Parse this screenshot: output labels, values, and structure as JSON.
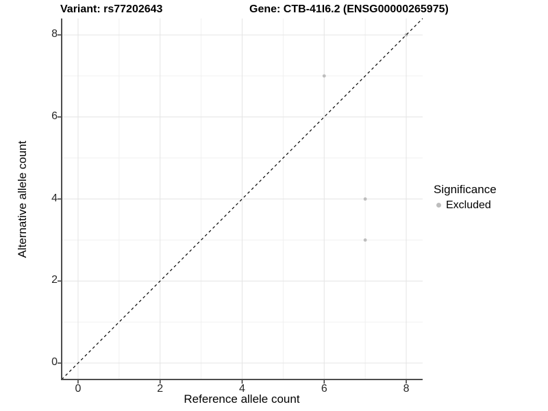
{
  "titles": {
    "left": "Variant: rs77202643",
    "right": "Gene: CTB-41I6.2 (ENSG00000265975)"
  },
  "chart_data": {
    "type": "scatter",
    "xlabel": "Reference allele count",
    "ylabel": "Alternative allele count",
    "xlim": [
      -0.4,
      8.4
    ],
    "ylim": [
      -0.4,
      8.4
    ],
    "x_ticks": [
      0,
      2,
      4,
      6,
      8
    ],
    "y_ticks": [
      0,
      2,
      4,
      6,
      8
    ],
    "gridlines": {
      "major": [
        0,
        2,
        4,
        6,
        8
      ],
      "minor": [
        1,
        3,
        5,
        7
      ]
    },
    "identity_line": {
      "style": "dashed",
      "from": -0.4,
      "to": 8.4,
      "color": "#000000"
    },
    "series": [
      {
        "name": "Excluded",
        "color": "#bdbdbd",
        "points": [
          [
            6,
            7
          ],
          [
            7,
            4
          ],
          [
            7,
            3
          ],
          [
            8,
            8
          ]
        ]
      }
    ],
    "legend": {
      "title": "Significance",
      "position": "right",
      "items": [
        {
          "label": "Excluded",
          "color": "#bdbdbd"
        }
      ]
    }
  },
  "colors": {
    "background": "#ffffff",
    "grid_major": "#e4e4e4",
    "grid_minor": "#f0f0f0",
    "axis_line": "#4d4d4d",
    "tick_mark": "#333333",
    "tick_text": "#262626",
    "point": "#bdbdbd"
  }
}
